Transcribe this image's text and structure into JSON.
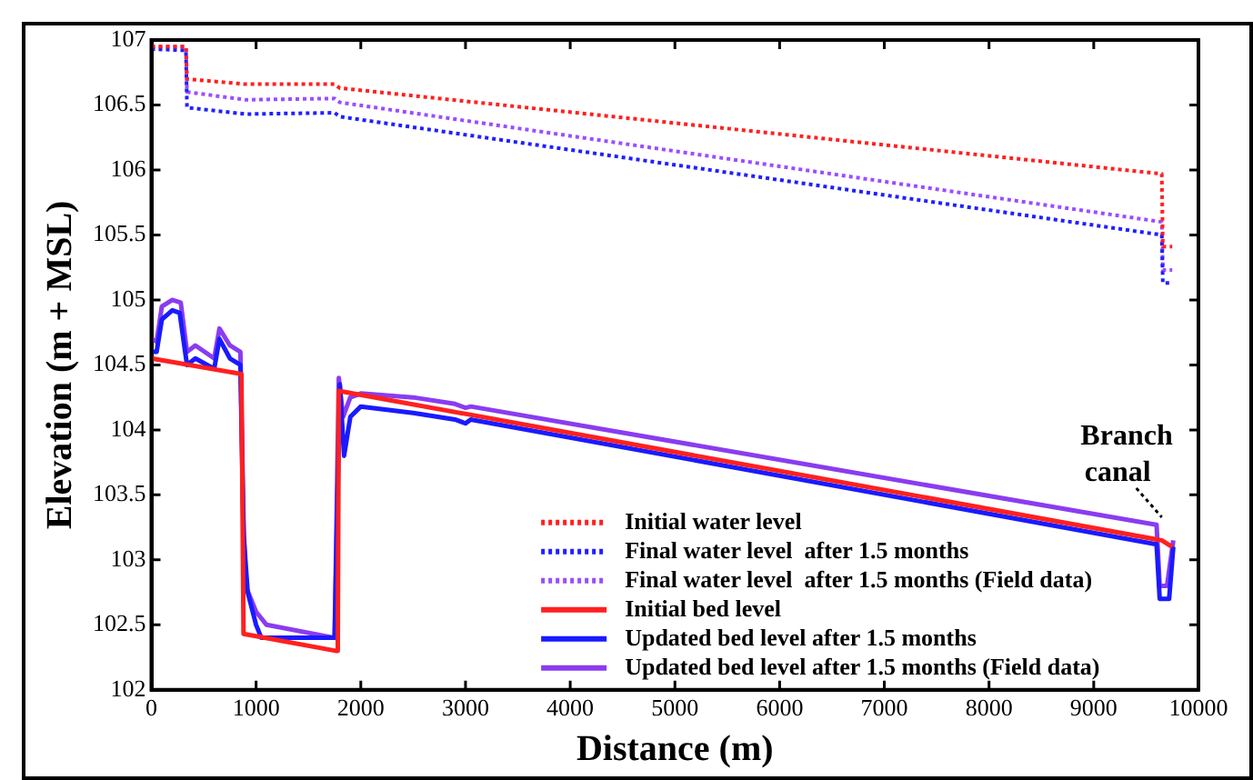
{
  "chart_data": {
    "type": "line",
    "xlabel": "Distance (m)",
    "ylabel": "Elevation (m + MSL)",
    "xlim": [
      0,
      10000
    ],
    "xticks": [
      0,
      1000,
      2000,
      3000,
      4000,
      5000,
      6000,
      7000,
      8000,
      9000,
      10000
    ],
    "ylim": [
      102,
      107
    ],
    "yticks": [
      102,
      102.5,
      103,
      103.5,
      104,
      104.5,
      105,
      105.5,
      106,
      106.5,
      107
    ],
    "grid": false,
    "legend": "bottom right",
    "marker": "none",
    "annotations": [
      {
        "text": "Branch canal",
        "x": 9650,
        "y": 103.3
      }
    ],
    "series": [
      {
        "name": "Initial water level",
        "color": "#ff2020",
        "line_style": "dotted",
        "x": [
          0,
          330,
          340,
          900,
          1750,
          1800,
          9650,
          9660,
          9750
        ],
        "values": [
          106.95,
          106.95,
          106.7,
          106.66,
          106.66,
          106.63,
          105.97,
          105.41,
          105.41
        ]
      },
      {
        "name": "Final water level  after 1.5 months",
        "color": "#2020ff",
        "line_style": "dotted",
        "x": [
          0,
          330,
          340,
          900,
          1750,
          1800,
          9650,
          9660,
          9750
        ],
        "values": [
          106.93,
          106.92,
          106.48,
          106.43,
          106.44,
          106.41,
          105.5,
          105.13,
          105.13
        ]
      },
      {
        "name": "Final water level  after 1.5 months (Field data)",
        "color": "#9b4dff",
        "line_style": "dotted",
        "x": [
          0,
          330,
          340,
          900,
          1750,
          1800,
          9650,
          9660,
          9750
        ],
        "values": [
          106.95,
          106.95,
          106.6,
          106.54,
          106.55,
          106.52,
          105.6,
          105.23,
          105.23
        ]
      },
      {
        "name": "Initial bed level",
        "color": "#ff2020",
        "line_style": "solid",
        "x": [
          0,
          860,
          880,
          1760,
          1780,
          1790,
          9650,
          9750
        ],
        "values": [
          104.55,
          104.43,
          102.43,
          102.3,
          102.3,
          104.3,
          103.15,
          103.1
        ]
      },
      {
        "name": "Updated bed level after 1.5 months",
        "color": "#1a1aff",
        "line_style": "solid",
        "x": [
          0,
          50,
          100,
          200,
          270,
          340,
          420,
          600,
          650,
          750,
          850,
          880,
          920,
          1000,
          1050,
          1750,
          1800,
          1840,
          1900,
          2000,
          2500,
          2900,
          3000,
          3050,
          9600,
          9630,
          9720,
          9760
        ],
        "values": [
          104.6,
          104.6,
          104.85,
          104.92,
          104.9,
          104.5,
          104.55,
          104.47,
          104.7,
          104.55,
          104.5,
          103.2,
          102.75,
          102.5,
          102.4,
          102.4,
          104.35,
          103.8,
          104.1,
          104.18,
          104.13,
          104.08,
          104.05,
          104.08,
          103.12,
          102.7,
          102.7,
          103.1
        ]
      },
      {
        "name": "Updated bed level after 1.5 months (Field data)",
        "color": "#8a3cf0",
        "line_style": "solid",
        "x": [
          0,
          50,
          100,
          200,
          280,
          340,
          420,
          600,
          650,
          750,
          850,
          880,
          900,
          1000,
          1100,
          1750,
          1790,
          1830,
          1900,
          2000,
          2500,
          2900,
          3000,
          3050,
          9600,
          9630,
          9700,
          9760
        ],
        "values": [
          104.7,
          104.68,
          104.95,
          105.0,
          104.98,
          104.6,
          104.65,
          104.55,
          104.78,
          104.65,
          104.6,
          103.3,
          102.8,
          102.6,
          102.5,
          102.4,
          104.4,
          104.1,
          104.25,
          104.28,
          104.25,
          104.2,
          104.17,
          104.18,
          103.27,
          102.8,
          102.8,
          103.15
        ]
      }
    ]
  }
}
